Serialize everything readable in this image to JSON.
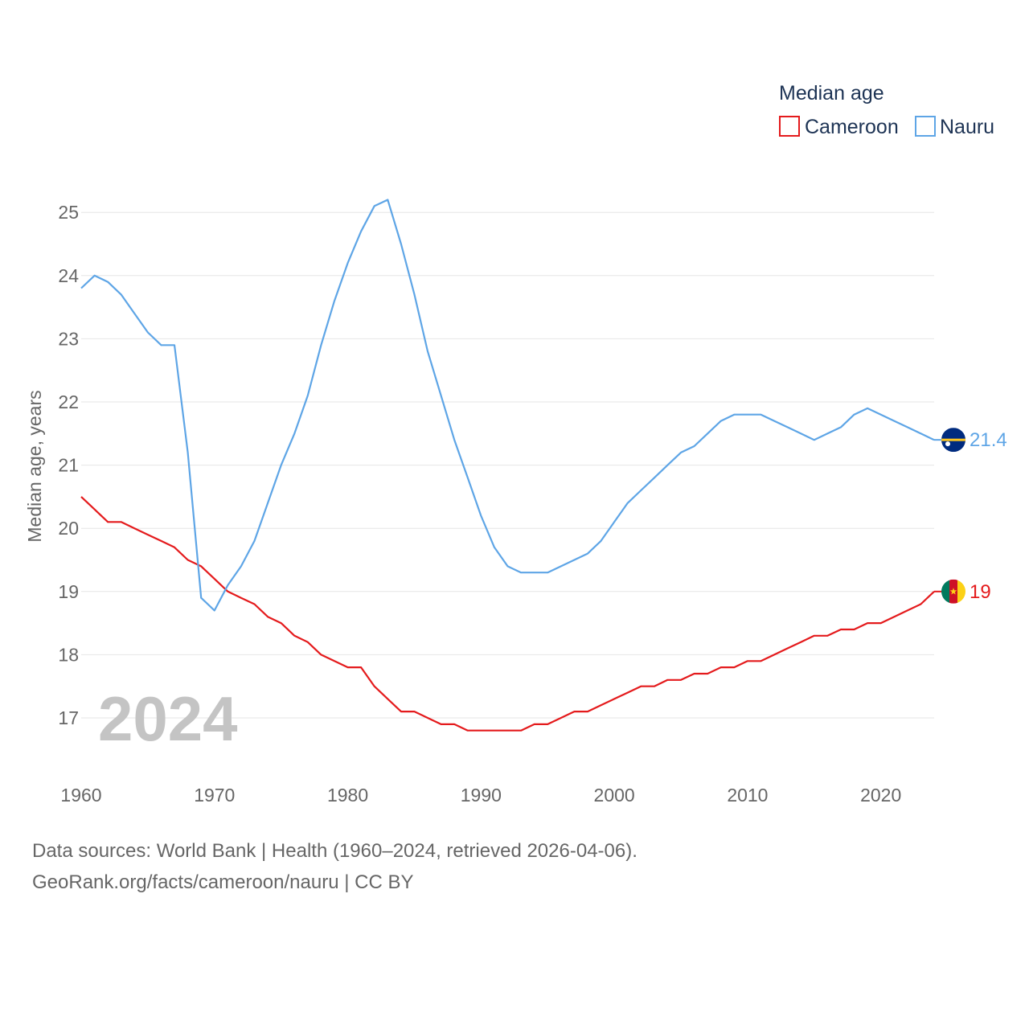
{
  "chart_data": {
    "type": "line",
    "ylabel": "Median age, years",
    "ylim": [
      16.1,
      25.3
    ],
    "xlim": [
      1960,
      2024
    ],
    "y_ticks": [
      17,
      18,
      19,
      20,
      21,
      22,
      23,
      24,
      25
    ],
    "x_ticks": [
      1960,
      1970,
      1980,
      1990,
      2000,
      2010,
      2020
    ],
    "grid": true,
    "legend": {
      "title": "Median age",
      "placement": "top-right"
    },
    "current_year": "2024",
    "series": [
      {
        "name": "Cameroon",
        "color": "#e41a1c",
        "end_label": "19",
        "flag": "cameroon-flag",
        "x": [
          1960,
          1961,
          1962,
          1963,
          1964,
          1965,
          1966,
          1967,
          1968,
          1969,
          1970,
          1971,
          1972,
          1973,
          1974,
          1975,
          1976,
          1977,
          1978,
          1979,
          1980,
          1981,
          1982,
          1983,
          1984,
          1985,
          1986,
          1987,
          1988,
          1989,
          1990,
          1991,
          1992,
          1993,
          1994,
          1995,
          1996,
          1997,
          1998,
          1999,
          2000,
          2001,
          2002,
          2003,
          2004,
          2005,
          2006,
          2007,
          2008,
          2009,
          2010,
          2011,
          2012,
          2013,
          2014,
          2015,
          2016,
          2017,
          2018,
          2019,
          2020,
          2021,
          2022,
          2023,
          2024
        ],
        "values": [
          20.5,
          20.3,
          20.1,
          20.1,
          20.0,
          19.9,
          19.8,
          19.7,
          19.5,
          19.4,
          19.2,
          19.0,
          18.9,
          18.8,
          18.6,
          18.5,
          18.3,
          18.2,
          18.0,
          17.9,
          17.8,
          17.8,
          17.5,
          17.3,
          17.1,
          17.1,
          17.0,
          16.9,
          16.9,
          16.8,
          16.8,
          16.8,
          16.8,
          16.8,
          16.9,
          16.9,
          17.0,
          17.1,
          17.1,
          17.2,
          17.3,
          17.4,
          17.5,
          17.5,
          17.6,
          17.6,
          17.7,
          17.7,
          17.8,
          17.8,
          17.9,
          17.9,
          18.0,
          18.1,
          18.2,
          18.3,
          18.3,
          18.4,
          18.4,
          18.5,
          18.5,
          18.6,
          18.7,
          18.8,
          19.0
        ]
      },
      {
        "name": "Nauru",
        "color": "#5ea5e6",
        "end_label": "21.4",
        "flag": "nauru-flag",
        "x": [
          1960,
          1961,
          1962,
          1963,
          1964,
          1965,
          1966,
          1967,
          1968,
          1969,
          1970,
          1971,
          1972,
          1973,
          1974,
          1975,
          1976,
          1977,
          1978,
          1979,
          1980,
          1981,
          1982,
          1983,
          1984,
          1985,
          1986,
          1987,
          1988,
          1989,
          1990,
          1991,
          1992,
          1993,
          1994,
          1995,
          1996,
          1997,
          1998,
          1999,
          2000,
          2001,
          2002,
          2003,
          2004,
          2005,
          2006,
          2007,
          2008,
          2009,
          2010,
          2011,
          2012,
          2013,
          2014,
          2015,
          2016,
          2017,
          2018,
          2019,
          2020,
          2021,
          2022,
          2023,
          2024
        ],
        "values": [
          23.8,
          24.0,
          23.9,
          23.7,
          23.4,
          23.1,
          22.9,
          22.9,
          21.2,
          18.9,
          18.7,
          19.1,
          19.4,
          19.8,
          20.4,
          21.0,
          21.5,
          22.1,
          22.9,
          23.6,
          24.2,
          24.7,
          25.1,
          25.2,
          24.5,
          23.7,
          22.8,
          22.1,
          21.4,
          20.8,
          20.2,
          19.7,
          19.4,
          19.3,
          19.3,
          19.3,
          19.4,
          19.5,
          19.6,
          19.8,
          20.1,
          20.4,
          20.6,
          20.8,
          21.0,
          21.2,
          21.3,
          21.5,
          21.7,
          21.8,
          21.8,
          21.8,
          21.7,
          21.6,
          21.5,
          21.4,
          21.5,
          21.6,
          21.8,
          21.9,
          21.8,
          21.7,
          21.6,
          21.5,
          21.4
        ]
      }
    ]
  },
  "footer": {
    "source_line": "Data sources: World Bank | Health (1960–2024, retrieved 2026-04-06).",
    "attribution_line": "GeoRank.org/facts/cameroon/nauru | CC BY"
  }
}
